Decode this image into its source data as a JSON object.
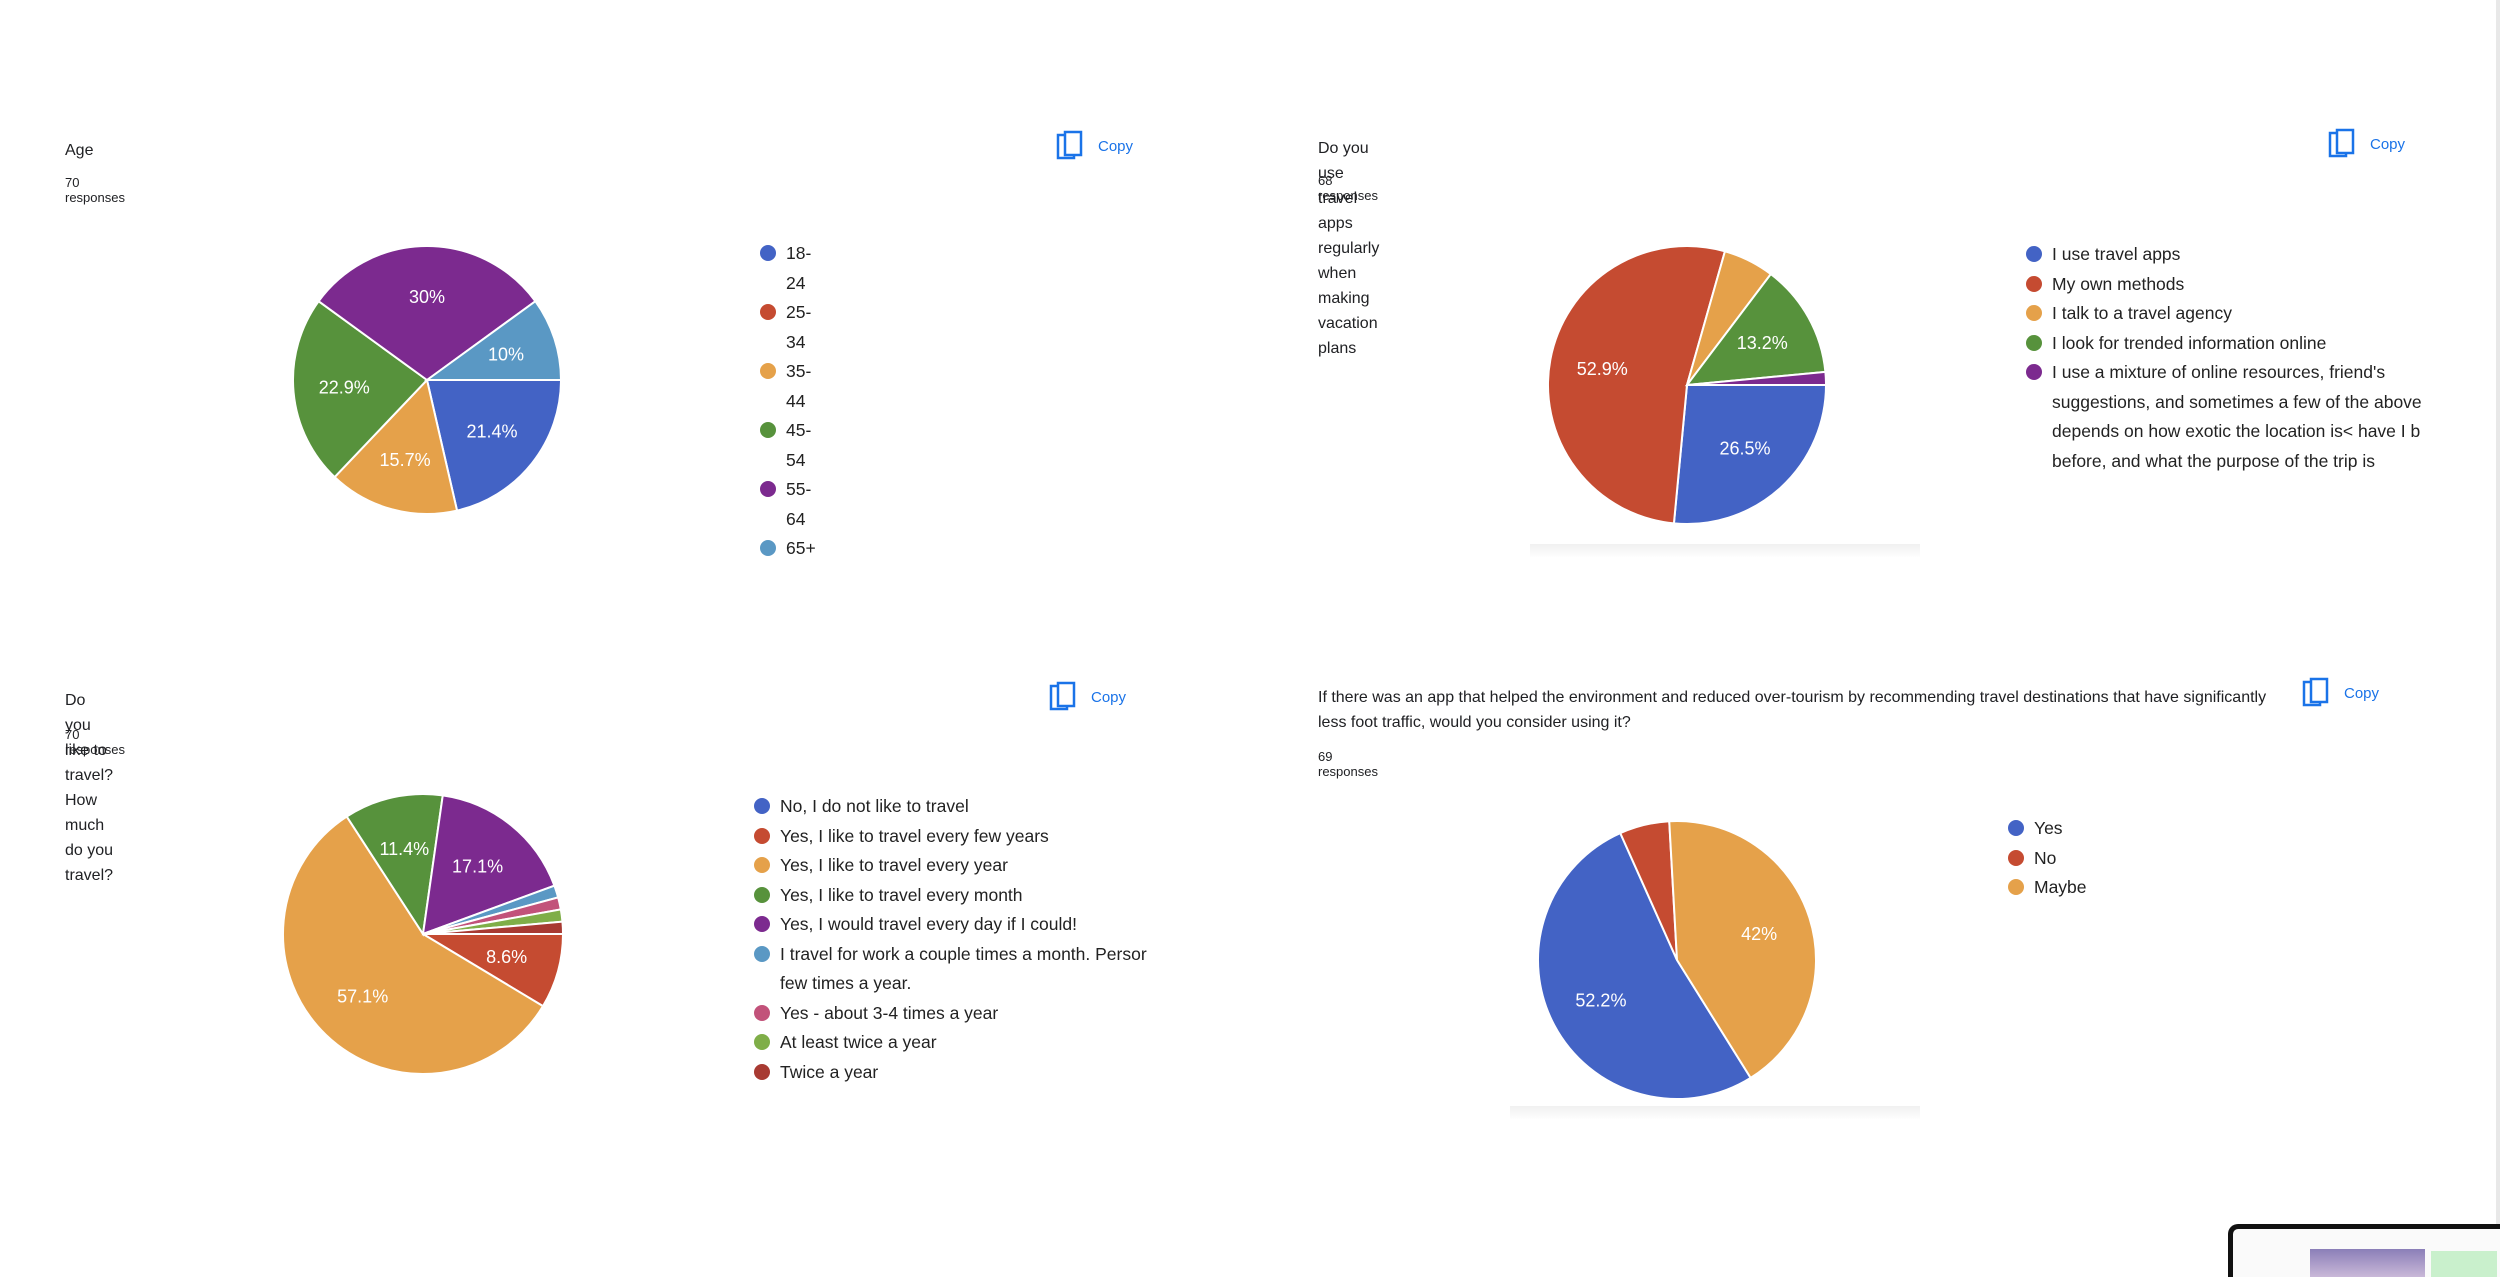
{
  "copy_label": "Copy",
  "charts": [
    {
      "title": "Age",
      "responses": "70 responses",
      "chart_data": {
        "type": "pie",
        "title": "Age",
        "categories": [
          "18-24",
          "25-34",
          "35-44",
          "45-54",
          "55-64",
          "65+"
        ],
        "values": [
          21.4,
          0,
          15.7,
          22.9,
          30,
          10
        ],
        "labels": [
          "21.4%",
          "",
          "15.7%",
          "22.9%",
          "30%",
          "10%"
        ],
        "colors": [
          "#4363c5",
          "#c54b31",
          "#e5a14a",
          "#57923c",
          "#7c2a8f",
          "#5a98c4"
        ],
        "legend_position": "right"
      }
    },
    {
      "title": "Do you use travel apps regularly when making vacation plans",
      "responses": "68 responses",
      "chart_data": {
        "type": "pie",
        "title": "Do you use travel apps regularly when making vacation plans",
        "categories": [
          "I use travel apps",
          "My own methods",
          "I talk to a travel agency",
          "I look for trended information online",
          "I use a mixture of online resources, friend's suggestions, and sometimes a few of the above\ndepends on how exotic the location is< have I b\nbefore, and what the purpose of the trip is"
        ],
        "values": [
          26.5,
          52.9,
          5.9,
          13.2,
          1.5
        ],
        "labels": [
          "26.5%",
          "52.9%",
          "",
          "13.2%",
          ""
        ],
        "colors": [
          "#4363c5",
          "#c54b31",
          "#e5a14a",
          "#57923c",
          "#7c2a8f"
        ],
        "legend_position": "right"
      }
    },
    {
      "title": "Do you like to travel? How much do you travel?",
      "responses": "70 responses",
      "chart_data": {
        "type": "pie",
        "title": "Do you like to travel? How much do you travel?",
        "categories": [
          "No, I do not like to travel",
          "Yes, I like to travel every few years",
          "Yes, I like to travel every year",
          "Yes, I like to travel every month",
          "Yes, I would travel every day if I could!",
          "I travel for work a couple times a month. Persor\nfew times a year.",
          "Yes - about 3-4 times a year",
          "At least twice a year",
          "Twice a year"
        ],
        "values": [
          0,
          8.6,
          57.1,
          11.4,
          17.1,
          1.4,
          1.4,
          1.4,
          1.4
        ],
        "labels": [
          "",
          "8.6%",
          "57.1%",
          "11.4%",
          "17.1%",
          "",
          "",
          "",
          ""
        ],
        "colors": [
          "#4363c5",
          "#c54b31",
          "#e5a14a",
          "#57923c",
          "#7c2a8f",
          "#5a98c4",
          "#c2527a",
          "#7fae48",
          "#a83a32"
        ],
        "legend_position": "right"
      }
    },
    {
      "title": "If there was an app that helped the environment and reduced over-tourism by recommending travel destinations that have significantly less foot traffic, would you consider using it?",
      "responses": "69 responses",
      "chart_data": {
        "type": "pie",
        "title": "If there was an app that helped the environment and reduced over-tourism by recommending travel destinations that have significantly less foot traffic, would you consider using it?",
        "categories": [
          "Yes",
          "No",
          "Maybe"
        ],
        "values": [
          52.2,
          5.8,
          42
        ],
        "labels": [
          "52.2%",
          "",
          "42%"
        ],
        "colors": [
          "#4363c5",
          "#c54b31",
          "#e5a14a"
        ],
        "legend_position": "right"
      }
    }
  ]
}
